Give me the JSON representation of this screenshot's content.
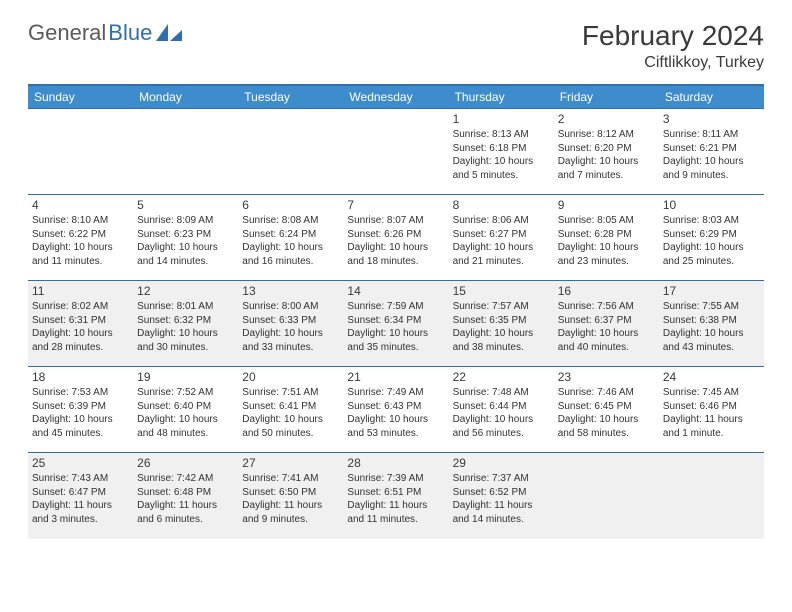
{
  "brand": {
    "word1": "General",
    "word2": "Blue"
  },
  "title": "February 2024",
  "location": "Ciftlikkoy, Turkey",
  "colors": {
    "header_bg": "#3e8ccc",
    "header_border": "#2f6fae",
    "row_shade": "#f0f0f0",
    "text": "#333333",
    "brand_gray": "#5a5a5a",
    "brand_blue": "#2f6fae"
  },
  "day_headers": [
    "Sunday",
    "Monday",
    "Tuesday",
    "Wednesday",
    "Thursday",
    "Friday",
    "Saturday"
  ],
  "weeks": [
    {
      "shaded": false,
      "days": [
        {
          "num": "",
          "sunrise": "",
          "sunset": "",
          "daylight": ""
        },
        {
          "num": "",
          "sunrise": "",
          "sunset": "",
          "daylight": ""
        },
        {
          "num": "",
          "sunrise": "",
          "sunset": "",
          "daylight": ""
        },
        {
          "num": "",
          "sunrise": "",
          "sunset": "",
          "daylight": ""
        },
        {
          "num": "1",
          "sunrise": "Sunrise: 8:13 AM",
          "sunset": "Sunset: 6:18 PM",
          "daylight": "Daylight: 10 hours and 5 minutes."
        },
        {
          "num": "2",
          "sunrise": "Sunrise: 8:12 AM",
          "sunset": "Sunset: 6:20 PM",
          "daylight": "Daylight: 10 hours and 7 minutes."
        },
        {
          "num": "3",
          "sunrise": "Sunrise: 8:11 AM",
          "sunset": "Sunset: 6:21 PM",
          "daylight": "Daylight: 10 hours and 9 minutes."
        }
      ]
    },
    {
      "shaded": false,
      "days": [
        {
          "num": "4",
          "sunrise": "Sunrise: 8:10 AM",
          "sunset": "Sunset: 6:22 PM",
          "daylight": "Daylight: 10 hours and 11 minutes."
        },
        {
          "num": "5",
          "sunrise": "Sunrise: 8:09 AM",
          "sunset": "Sunset: 6:23 PM",
          "daylight": "Daylight: 10 hours and 14 minutes."
        },
        {
          "num": "6",
          "sunrise": "Sunrise: 8:08 AM",
          "sunset": "Sunset: 6:24 PM",
          "daylight": "Daylight: 10 hours and 16 minutes."
        },
        {
          "num": "7",
          "sunrise": "Sunrise: 8:07 AM",
          "sunset": "Sunset: 6:26 PM",
          "daylight": "Daylight: 10 hours and 18 minutes."
        },
        {
          "num": "8",
          "sunrise": "Sunrise: 8:06 AM",
          "sunset": "Sunset: 6:27 PM",
          "daylight": "Daylight: 10 hours and 21 minutes."
        },
        {
          "num": "9",
          "sunrise": "Sunrise: 8:05 AM",
          "sunset": "Sunset: 6:28 PM",
          "daylight": "Daylight: 10 hours and 23 minutes."
        },
        {
          "num": "10",
          "sunrise": "Sunrise: 8:03 AM",
          "sunset": "Sunset: 6:29 PM",
          "daylight": "Daylight: 10 hours and 25 minutes."
        }
      ]
    },
    {
      "shaded": true,
      "days": [
        {
          "num": "11",
          "sunrise": "Sunrise: 8:02 AM",
          "sunset": "Sunset: 6:31 PM",
          "daylight": "Daylight: 10 hours and 28 minutes."
        },
        {
          "num": "12",
          "sunrise": "Sunrise: 8:01 AM",
          "sunset": "Sunset: 6:32 PM",
          "daylight": "Daylight: 10 hours and 30 minutes."
        },
        {
          "num": "13",
          "sunrise": "Sunrise: 8:00 AM",
          "sunset": "Sunset: 6:33 PM",
          "daylight": "Daylight: 10 hours and 33 minutes."
        },
        {
          "num": "14",
          "sunrise": "Sunrise: 7:59 AM",
          "sunset": "Sunset: 6:34 PM",
          "daylight": "Daylight: 10 hours and 35 minutes."
        },
        {
          "num": "15",
          "sunrise": "Sunrise: 7:57 AM",
          "sunset": "Sunset: 6:35 PM",
          "daylight": "Daylight: 10 hours and 38 minutes."
        },
        {
          "num": "16",
          "sunrise": "Sunrise: 7:56 AM",
          "sunset": "Sunset: 6:37 PM",
          "daylight": "Daylight: 10 hours and 40 minutes."
        },
        {
          "num": "17",
          "sunrise": "Sunrise: 7:55 AM",
          "sunset": "Sunset: 6:38 PM",
          "daylight": "Daylight: 10 hours and 43 minutes."
        }
      ]
    },
    {
      "shaded": false,
      "days": [
        {
          "num": "18",
          "sunrise": "Sunrise: 7:53 AM",
          "sunset": "Sunset: 6:39 PM",
          "daylight": "Daylight: 10 hours and 45 minutes."
        },
        {
          "num": "19",
          "sunrise": "Sunrise: 7:52 AM",
          "sunset": "Sunset: 6:40 PM",
          "daylight": "Daylight: 10 hours and 48 minutes."
        },
        {
          "num": "20",
          "sunrise": "Sunrise: 7:51 AM",
          "sunset": "Sunset: 6:41 PM",
          "daylight": "Daylight: 10 hours and 50 minutes."
        },
        {
          "num": "21",
          "sunrise": "Sunrise: 7:49 AM",
          "sunset": "Sunset: 6:43 PM",
          "daylight": "Daylight: 10 hours and 53 minutes."
        },
        {
          "num": "22",
          "sunrise": "Sunrise: 7:48 AM",
          "sunset": "Sunset: 6:44 PM",
          "daylight": "Daylight: 10 hours and 56 minutes."
        },
        {
          "num": "23",
          "sunrise": "Sunrise: 7:46 AM",
          "sunset": "Sunset: 6:45 PM",
          "daylight": "Daylight: 10 hours and 58 minutes."
        },
        {
          "num": "24",
          "sunrise": "Sunrise: 7:45 AM",
          "sunset": "Sunset: 6:46 PM",
          "daylight": "Daylight: 11 hours and 1 minute."
        }
      ]
    },
    {
      "shaded": true,
      "days": [
        {
          "num": "25",
          "sunrise": "Sunrise: 7:43 AM",
          "sunset": "Sunset: 6:47 PM",
          "daylight": "Daylight: 11 hours and 3 minutes."
        },
        {
          "num": "26",
          "sunrise": "Sunrise: 7:42 AM",
          "sunset": "Sunset: 6:48 PM",
          "daylight": "Daylight: 11 hours and 6 minutes."
        },
        {
          "num": "27",
          "sunrise": "Sunrise: 7:41 AM",
          "sunset": "Sunset: 6:50 PM",
          "daylight": "Daylight: 11 hours and 9 minutes."
        },
        {
          "num": "28",
          "sunrise": "Sunrise: 7:39 AM",
          "sunset": "Sunset: 6:51 PM",
          "daylight": "Daylight: 11 hours and 11 minutes."
        },
        {
          "num": "29",
          "sunrise": "Sunrise: 7:37 AM",
          "sunset": "Sunset: 6:52 PM",
          "daylight": "Daylight: 11 hours and 14 minutes."
        },
        {
          "num": "",
          "sunrise": "",
          "sunset": "",
          "daylight": ""
        },
        {
          "num": "",
          "sunrise": "",
          "sunset": "",
          "daylight": ""
        }
      ]
    }
  ]
}
